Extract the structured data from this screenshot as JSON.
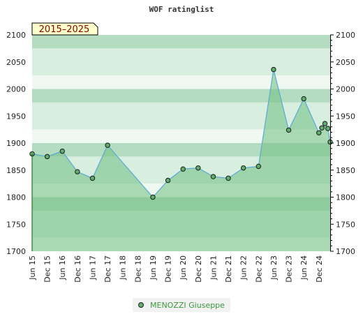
{
  "chart_data": {
    "type": "area",
    "title": "WOF ratinglist",
    "badge": "2015–2025",
    "ylim": [
      1700,
      2100
    ],
    "y_ticks": [
      1700,
      1750,
      1800,
      1850,
      1900,
      1950,
      2000,
      2050,
      2100
    ],
    "x_ticks": [
      "Jun 15",
      "Dec 15",
      "Jun 16",
      "Dec 16",
      "Jun 17",
      "Dec 17",
      "Jun 18",
      "Dec 18",
      "Jun 19",
      "Dec 19",
      "Jun 20",
      "Dec 20",
      "Jun 21",
      "Dec 21",
      "Jun 22",
      "Dec 22",
      "Jun 23",
      "Dec 23",
      "Jun 24",
      "Dec 24"
    ],
    "legend_position": "bottom",
    "colors": {
      "band_dark": "#b4dcc0",
      "band_light": "#d8eedf",
      "band_white": "#f0f8f2",
      "fill": "#6fbf7f",
      "line": "#5aa9d6",
      "marker": "#5fae6c"
    },
    "series": [
      {
        "name": "MENOZZI Giuseppe",
        "x": [
          0,
          1,
          2,
          3,
          4,
          5,
          8,
          9,
          10,
          11,
          12,
          13,
          14,
          15,
          16,
          17,
          18,
          19.0,
          19.2,
          19.4,
          19.6,
          19.75
        ],
        "values": [
          1880,
          1875,
          1885,
          1847,
          1835,
          1896,
          1800,
          1831,
          1852,
          1854,
          1838,
          1835,
          1854,
          1857,
          2036,
          1924,
          1982,
          1919,
          1928,
          1936,
          1927,
          1902
        ]
      }
    ]
  }
}
